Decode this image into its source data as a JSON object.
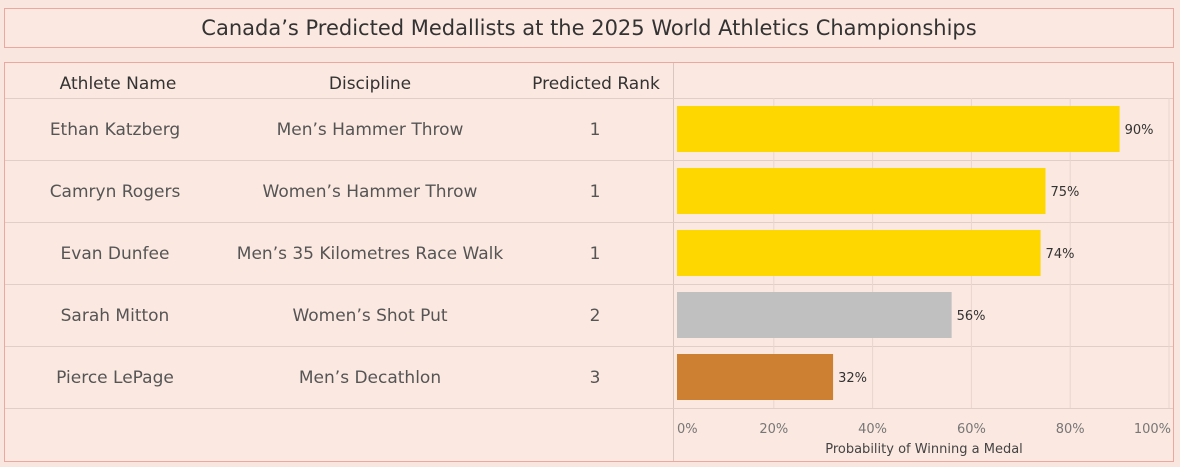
{
  "title": "Canada’s Predicted Medallists at the 2025 World Athletics Championships",
  "table": {
    "headers": {
      "name": "Athlete Name",
      "discipline": "Discipline",
      "rank": "Predicted Rank"
    },
    "rows": [
      {
        "name": "Ethan Katzberg",
        "discipline": "Men’s Hammer Throw",
        "rank": "1"
      },
      {
        "name": "Camryn Rogers",
        "discipline": "Women’s Hammer Throw",
        "rank": "1"
      },
      {
        "name": "Evan Dunfee",
        "discipline": "Men’s 35 Kilometres Race Walk",
        "rank": "1"
      },
      {
        "name": "Sarah Mitton",
        "discipline": "Women’s Shot Put",
        "rank": "2"
      },
      {
        "name": "Pierce LePage",
        "discipline": "Men’s Decathlon",
        "rank": "3"
      }
    ]
  },
  "chart_data": {
    "type": "bar",
    "orientation": "horizontal",
    "categories": [
      "Ethan Katzberg",
      "Camryn Rogers",
      "Evan Dunfee",
      "Sarah Mitton",
      "Pierce LePage"
    ],
    "values": [
      90,
      75,
      74,
      56,
      32
    ],
    "data_labels": [
      "90%",
      "75%",
      "74%",
      "56%",
      "32%"
    ],
    "colors": [
      "#ffd700",
      "#ffd700",
      "#ffd700",
      "#c0c0c0",
      "#cd7f32"
    ],
    "xlabel": "Probability of Winning a Medal",
    "xlim": [
      0,
      100
    ],
    "x_ticks": [
      "0%",
      "20%",
      "40%",
      "60%",
      "80%",
      "100%"
    ],
    "grid": true
  }
}
